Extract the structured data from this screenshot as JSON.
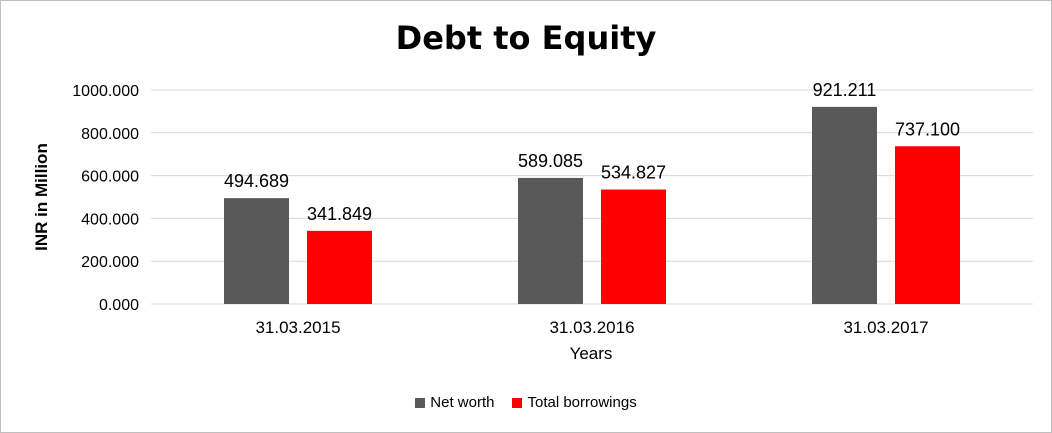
{
  "chart_data": {
    "type": "bar",
    "title": "Debt to Equity",
    "xlabel": "Years",
    "ylabel": "INR in Million",
    "categories": [
      "31.03.2015",
      "31.03.2016",
      "31.03.2017"
    ],
    "series": [
      {
        "name": "Net worth",
        "values": [
          494.689,
          589.085,
          921.211
        ],
        "labels": [
          "494.689",
          "589.085",
          "921.211"
        ],
        "color": "#595959"
      },
      {
        "name": "Total borrowings",
        "values": [
          341.849,
          534.827,
          737.1
        ],
        "labels": [
          "341.849",
          "534.827",
          "737.100"
        ],
        "color": "#ff0000"
      }
    ],
    "ylim": [
      0,
      1000
    ],
    "yticks": [
      "0.000",
      "200.000",
      "400.000",
      "600.000",
      "800.000",
      "1000.000"
    ],
    "grid": true,
    "legend": "bottom"
  }
}
